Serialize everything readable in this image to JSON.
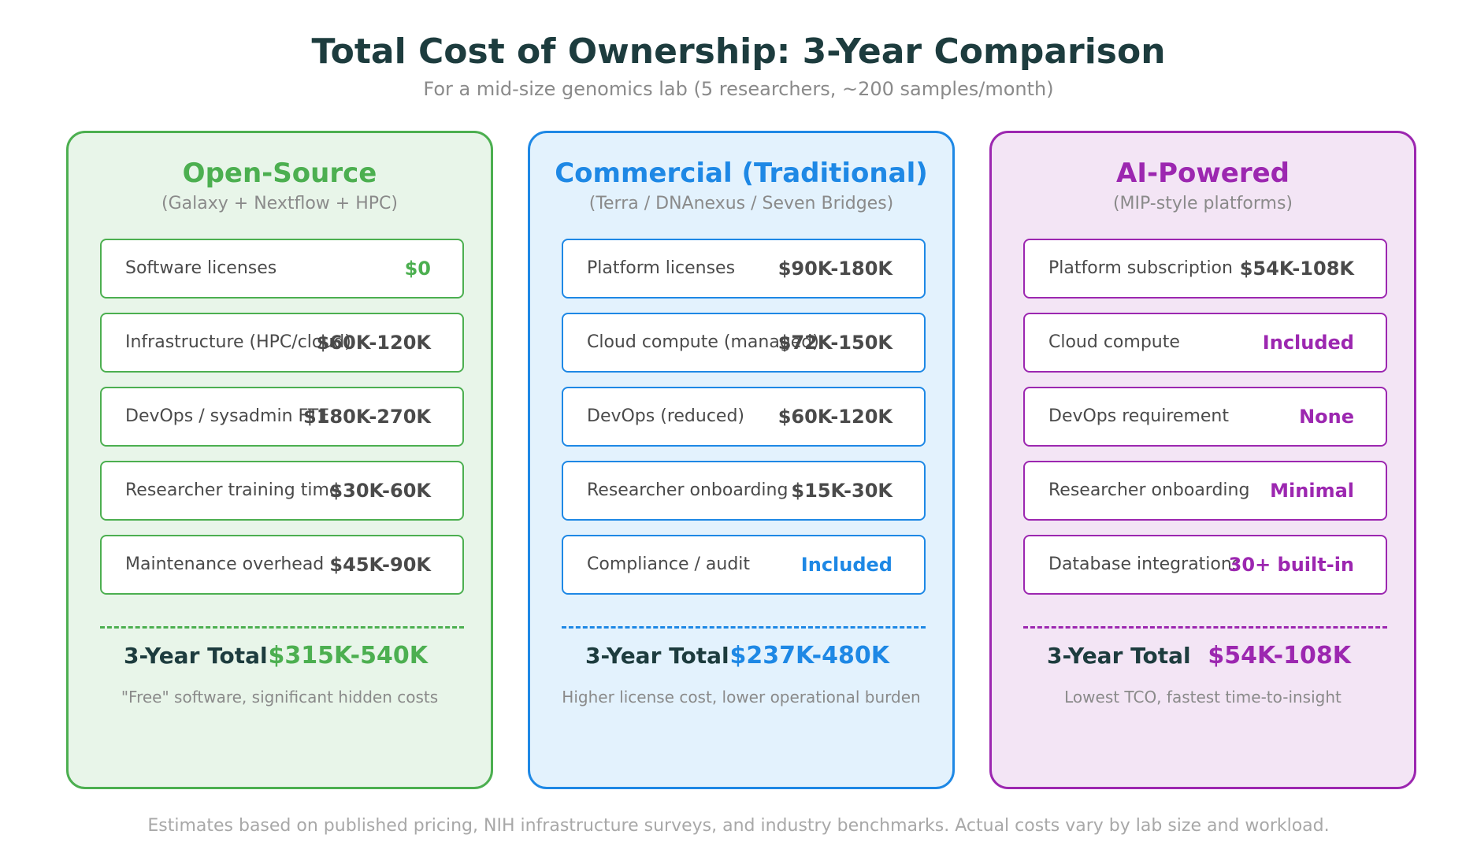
{
  "title": "Total Cost of Ownership: 3-Year Comparison",
  "subtitle": "For a mid-size genomics lab (5 researchers, ~200 samples/month)",
  "columns": [
    {
      "name": "Open-Source",
      "subtitle": "(Galaxy + Nextflow + HPC)",
      "accent": "#4caf50",
      "background": "#e8f5e9",
      "rows": [
        {
          "label": "Software licenses",
          "value": "$0",
          "highlight": true
        },
        {
          "label": "Infrastructure (HPC/cloud)",
          "value": "$60K-120K",
          "highlight": false
        },
        {
          "label": "DevOps / sysadmin FTE",
          "value": "$180K-270K",
          "highlight": false
        },
        {
          "label": "Researcher training time",
          "value": "$30K-60K",
          "highlight": false
        },
        {
          "label": "Maintenance overhead",
          "value": "$45K-90K",
          "highlight": false
        }
      ],
      "total_label": "3-Year Total",
      "total_value": "$315K-540K",
      "note": "\"Free\" software, significant hidden costs"
    },
    {
      "name": "Commercial (Traditional)",
      "subtitle": "(Terra / DNAnexus / Seven Bridges)",
      "accent": "#1e88e5",
      "background": "#e3f2fd",
      "rows": [
        {
          "label": "Platform licenses",
          "value": "$90K-180K",
          "highlight": false
        },
        {
          "label": "Cloud compute (managed)",
          "value": "$72K-150K",
          "highlight": false
        },
        {
          "label": "DevOps (reduced)",
          "value": "$60K-120K",
          "highlight": false
        },
        {
          "label": "Researcher onboarding",
          "value": "$15K-30K",
          "highlight": false
        },
        {
          "label": "Compliance / audit",
          "value": "Included",
          "highlight": true
        }
      ],
      "total_label": "3-Year Total",
      "total_value": "$237K-480K",
      "note": "Higher license cost, lower operational burden"
    },
    {
      "name": "AI-Powered",
      "subtitle": "(MIP-style platforms)",
      "accent": "#9c27b0",
      "background": "#f3e5f5",
      "rows": [
        {
          "label": "Platform subscription",
          "value": "$54K-108K",
          "highlight": false
        },
        {
          "label": "Cloud compute",
          "value": "Included",
          "highlight": true
        },
        {
          "label": "DevOps requirement",
          "value": "None",
          "highlight": true
        },
        {
          "label": "Researcher onboarding",
          "value": "Minimal",
          "highlight": true
        },
        {
          "label": "Database integrations",
          "value": "30+ built-in",
          "highlight": true
        }
      ],
      "total_label": "3-Year Total",
      "total_value": "$54K-108K",
      "note": "Lowest TCO, fastest time-to-insight"
    }
  ],
  "footer": "Estimates based on published pricing, NIH infrastructure surveys, and industry benchmarks. Actual costs vary by lab size and workload."
}
